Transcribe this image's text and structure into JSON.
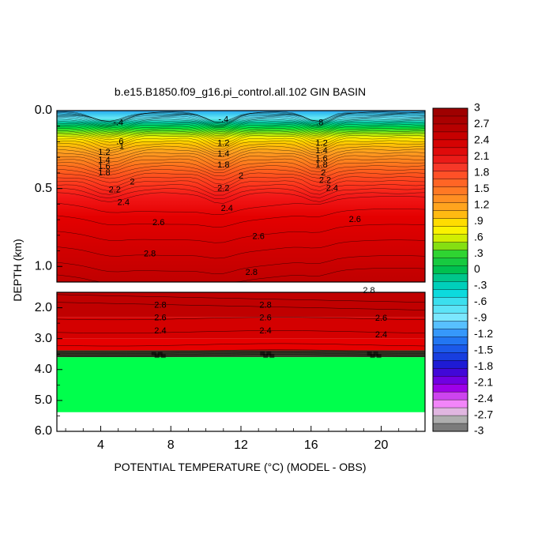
{
  "chart_data": {
    "type": "contour",
    "title": "b.e15.B1850.f09_g16.pi_control.all.102 GIN BASIN",
    "xlabel": "POTENTIAL TEMPERATURE (°C) (MODEL - OBS)",
    "ylabel": "DEPTH (km)",
    "xlim": [
      1.5,
      22.5
    ],
    "x_ticks": [
      4,
      8,
      12,
      16,
      20
    ],
    "upper_panel": {
      "ylim": [
        0.0,
        1.1
      ],
      "y_ticks": [
        "0.0",
        "0.5",
        "1.0"
      ],
      "contour_labels": [
        {
          "text": "-.4",
          "x": 5.0,
          "y": 0.08
        },
        {
          "text": ".6",
          "x": 5.1,
          "y": 0.2
        },
        {
          "text": "1",
          "x": 5.2,
          "y": 0.23
        },
        {
          "text": "1.2",
          "x": 4.2,
          "y": 0.27
        },
        {
          "text": "1.4",
          "x": 4.2,
          "y": 0.32
        },
        {
          "text": "1.6",
          "x": 4.2,
          "y": 0.36
        },
        {
          "text": "1.8",
          "x": 4.2,
          "y": 0.4
        },
        {
          "text": "2",
          "x": 5.8,
          "y": 0.46
        },
        {
          "text": "2.2",
          "x": 4.8,
          "y": 0.51
        },
        {
          "text": "2.4",
          "x": 5.3,
          "y": 0.59
        },
        {
          "text": "2.6",
          "x": 7.3,
          "y": 0.72
        },
        {
          "text": "2.8",
          "x": 6.8,
          "y": 0.92
        },
        {
          "text": "-.4",
          "x": 11.0,
          "y": 0.06
        },
        {
          "text": "1.2",
          "x": 11.0,
          "y": 0.21
        },
        {
          "text": "1.4",
          "x": 11.0,
          "y": 0.28
        },
        {
          "text": "1.8",
          "x": 11.0,
          "y": 0.35
        },
        {
          "text": "2",
          "x": 12.0,
          "y": 0.42
        },
        {
          "text": "2.2",
          "x": 11.0,
          "y": 0.5
        },
        {
          "text": "2.4",
          "x": 11.2,
          "y": 0.63
        },
        {
          "text": "2.6",
          "x": 13.0,
          "y": 0.81
        },
        {
          "text": "2.8",
          "x": 12.6,
          "y": 1.04
        },
        {
          "text": ".8",
          "x": 16.5,
          "y": 0.08
        },
        {
          "text": "1.2",
          "x": 16.6,
          "y": 0.21
        },
        {
          "text": "1.4",
          "x": 16.6,
          "y": 0.26
        },
        {
          "text": "1.6",
          "x": 16.6,
          "y": 0.31
        },
        {
          "text": "1.8",
          "x": 16.6,
          "y": 0.35
        },
        {
          "text": "2",
          "x": 16.7,
          "y": 0.4
        },
        {
          "text": "2.2",
          "x": 16.8,
          "y": 0.45
        },
        {
          "text": "2.4",
          "x": 17.2,
          "y": 0.5
        },
        {
          "text": "2.6",
          "x": 18.5,
          "y": 0.7
        }
      ]
    },
    "lower_panel": {
      "ylim": [
        1.5,
        6.0
      ],
      "y_ticks": [
        "2.0",
        "3.0",
        "4.0",
        "5.0",
        "6.0"
      ],
      "fill_bands": [
        {
          "from": 1.5,
          "to": 2.3,
          "color": "#c00000"
        },
        {
          "from": 2.3,
          "to": 3.0,
          "color": "#d40000"
        },
        {
          "from": 3.0,
          "to": 3.38,
          "color": "#e60000"
        },
        {
          "from": 3.38,
          "to": 3.6,
          "color": "#3a3a28"
        },
        {
          "from": 3.6,
          "to": 5.38,
          "color": "#00ff4c"
        }
      ],
      "contour_labels": [
        {
          "text": "2.8",
          "x": 7.4,
          "y": 1.92
        },
        {
          "text": "2.6",
          "x": 7.4,
          "y": 2.33
        },
        {
          "text": "2.4",
          "x": 7.4,
          "y": 2.76
        },
        {
          "text": "2.8",
          "x": 13.4,
          "y": 1.92
        },
        {
          "text": "2.6",
          "x": 13.4,
          "y": 2.33
        },
        {
          "text": "2.4",
          "x": 13.4,
          "y": 2.76
        },
        {
          "text": "2.8",
          "x": 19.3,
          "y": 1.45
        },
        {
          "text": "2.6",
          "x": 20.0,
          "y": 2.34
        },
        {
          "text": "2.4",
          "x": 20.0,
          "y": 2.88
        }
      ]
    },
    "colorbar": {
      "labels": [
        "3",
        "2.7",
        "2.4",
        "2.1",
        "1.8",
        "1.5",
        "1.2",
        ".9",
        ".6",
        ".3",
        "0",
        "-.3",
        "-.6",
        "-.9",
        "-1.2",
        "-1.5",
        "-1.8",
        "-2.1",
        "-2.4",
        "-2.7",
        "-3"
      ],
      "range": [
        -3,
        3
      ],
      "levels": 41
    }
  }
}
